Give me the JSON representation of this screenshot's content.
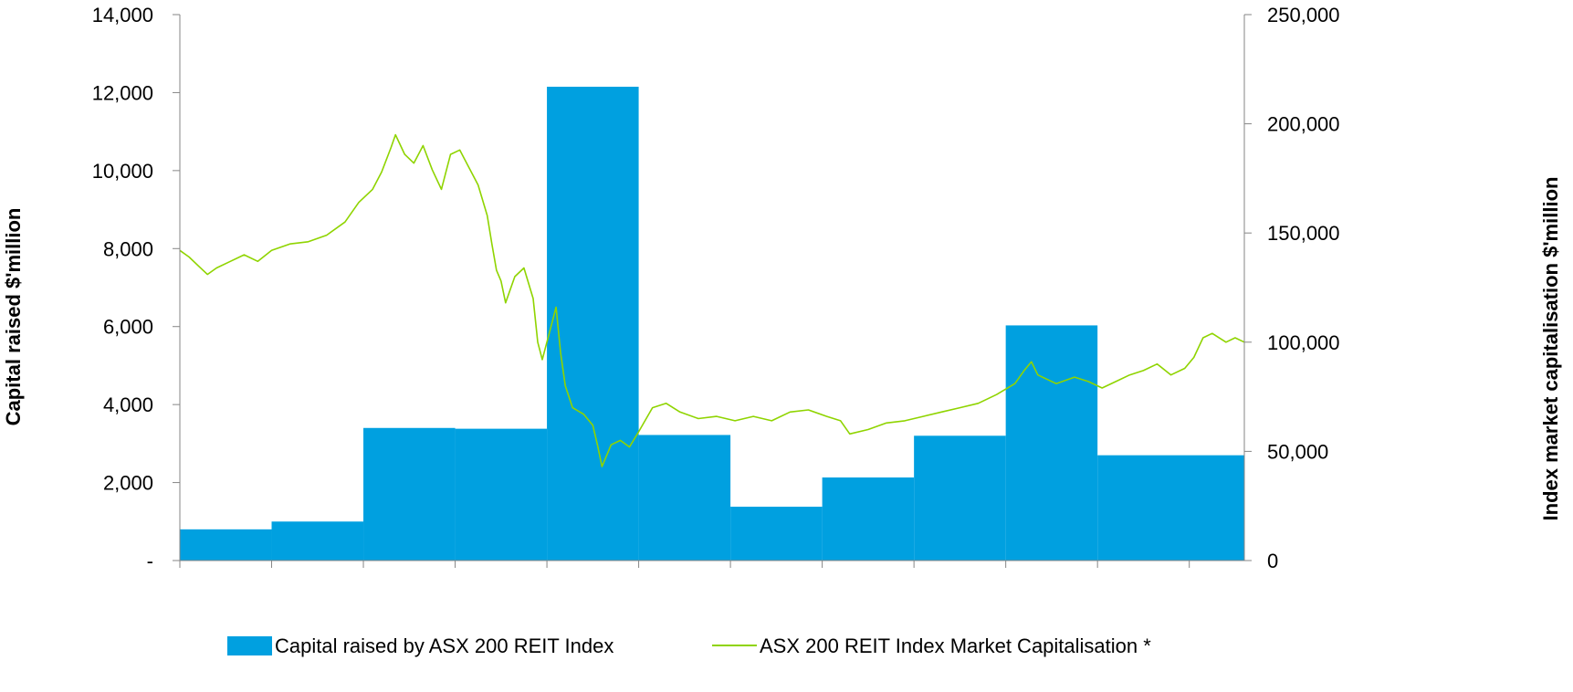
{
  "chart_data": {
    "type": "bar+line",
    "title": "",
    "y_left": {
      "label": "Capital raised $'million",
      "range": [
        0,
        14000
      ],
      "ticks": [
        {
          "value": 0,
          "label": "-"
        },
        {
          "value": 2000,
          "label": "2,000"
        },
        {
          "value": 4000,
          "label": "4,000"
        },
        {
          "value": 6000,
          "label": "6,000"
        },
        {
          "value": 8000,
          "label": "8,000"
        },
        {
          "value": 10000,
          "label": "10,000"
        },
        {
          "value": 12000,
          "label": "12,000"
        },
        {
          "value": 14000,
          "label": "14,000"
        }
      ]
    },
    "y_right": {
      "label": "Index market capitalisation $'million",
      "range": [
        0,
        250000
      ],
      "ticks": [
        {
          "value": 0,
          "label": "0"
        },
        {
          "value": 50000,
          "label": "50,000"
        },
        {
          "value": 100000,
          "label": "100,000"
        },
        {
          "value": 150000,
          "label": "150,000"
        },
        {
          "value": 200000,
          "label": "200,000"
        },
        {
          "value": 250000,
          "label": "250,000"
        }
      ]
    },
    "x_periods": 11.6,
    "grid": false,
    "legend_position": "bottom",
    "series": [
      {
        "name": "Capital raised by ASX 200 REIT Index",
        "kind": "bar",
        "axis": "left",
        "color": "#00a0e0",
        "values": [
          800,
          1000,
          3400,
          3380,
          12150,
          3220,
          1380,
          2130,
          3200,
          6030,
          2700
        ]
      },
      {
        "name": "ASX 200 REIT Index Market Capitalisation *",
        "kind": "line",
        "axis": "right",
        "color": "#8fd400",
        "points": [
          [
            0.0,
            142000
          ],
          [
            0.1,
            139000
          ],
          [
            0.2,
            135000
          ],
          [
            0.3,
            131000
          ],
          [
            0.4,
            134000
          ],
          [
            0.55,
            137000
          ],
          [
            0.7,
            140000
          ],
          [
            0.85,
            137000
          ],
          [
            1.0,
            142000
          ],
          [
            1.2,
            145000
          ],
          [
            1.4,
            146000
          ],
          [
            1.6,
            149000
          ],
          [
            1.8,
            155000
          ],
          [
            1.95,
            164000
          ],
          [
            2.1,
            170000
          ],
          [
            2.2,
            178000
          ],
          [
            2.3,
            189000
          ],
          [
            2.35,
            195000
          ],
          [
            2.45,
            186000
          ],
          [
            2.55,
            182000
          ],
          [
            2.65,
            190000
          ],
          [
            2.75,
            179000
          ],
          [
            2.85,
            170000
          ],
          [
            2.95,
            186000
          ],
          [
            3.05,
            188000
          ],
          [
            3.15,
            180000
          ],
          [
            3.25,
            172000
          ],
          [
            3.35,
            158000
          ],
          [
            3.4,
            145000
          ],
          [
            3.45,
            133000
          ],
          [
            3.5,
            128000
          ],
          [
            3.55,
            118000
          ],
          [
            3.65,
            130000
          ],
          [
            3.75,
            134000
          ],
          [
            3.85,
            120000
          ],
          [
            3.9,
            100000
          ],
          [
            3.95,
            92000
          ],
          [
            4.05,
            108000
          ],
          [
            4.1,
            116000
          ],
          [
            4.15,
            95000
          ],
          [
            4.2,
            80000
          ],
          [
            4.28,
            70000
          ],
          [
            4.4,
            67000
          ],
          [
            4.5,
            62000
          ],
          [
            4.55,
            53000
          ],
          [
            4.6,
            43000
          ],
          [
            4.7,
            53000
          ],
          [
            4.8,
            55000
          ],
          [
            4.9,
            52000
          ],
          [
            5.0,
            59000
          ],
          [
            5.15,
            70000
          ],
          [
            5.3,
            72000
          ],
          [
            5.45,
            68000
          ],
          [
            5.65,
            65000
          ],
          [
            5.85,
            66000
          ],
          [
            6.05,
            64000
          ],
          [
            6.25,
            66000
          ],
          [
            6.45,
            64000
          ],
          [
            6.65,
            68000
          ],
          [
            6.85,
            69000
          ],
          [
            7.05,
            66000
          ],
          [
            7.2,
            64000
          ],
          [
            7.3,
            58000
          ],
          [
            7.5,
            60000
          ],
          [
            7.7,
            63000
          ],
          [
            7.9,
            64000
          ],
          [
            8.1,
            66000
          ],
          [
            8.3,
            68000
          ],
          [
            8.5,
            70000
          ],
          [
            8.7,
            72000
          ],
          [
            8.9,
            76000
          ],
          [
            9.1,
            81000
          ],
          [
            9.2,
            87000
          ],
          [
            9.28,
            91000
          ],
          [
            9.35,
            85000
          ],
          [
            9.55,
            81000
          ],
          [
            9.75,
            84000
          ],
          [
            9.9,
            82000
          ],
          [
            10.05,
            79000
          ],
          [
            10.2,
            82000
          ],
          [
            10.35,
            85000
          ],
          [
            10.5,
            87000
          ],
          [
            10.65,
            90000
          ],
          [
            10.8,
            85000
          ],
          [
            10.95,
            88000
          ],
          [
            11.05,
            93000
          ],
          [
            11.15,
            102000
          ],
          [
            11.25,
            104000
          ],
          [
            11.4,
            100000
          ],
          [
            11.5,
            102000
          ],
          [
            11.6,
            100000
          ]
        ]
      }
    ]
  }
}
